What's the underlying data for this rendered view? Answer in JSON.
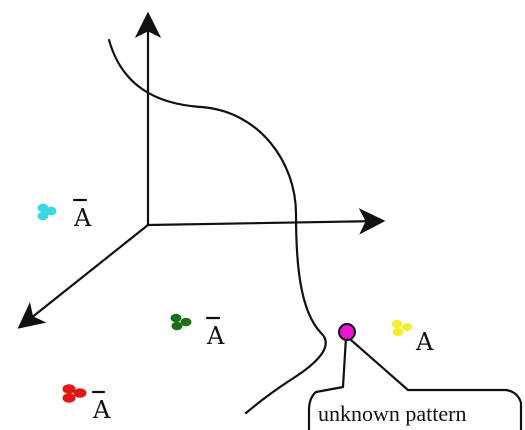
{
  "diagram": {
    "labels": {
      "cyan_class": "A",
      "green_class": "A",
      "red_class": "A",
      "yellow_class": "A",
      "unknown_pattern": "unknown pattern"
    },
    "colors": {
      "cyan": "#39d7e6",
      "green": "#1d6f18",
      "red": "#e01818",
      "yellow": "#f2ef2d",
      "unknown": "#ea13d2",
      "line": "#111111"
    },
    "class_bars": {
      "cyan_class": true,
      "green_class": true,
      "red_class": true,
      "yellow_class": false
    }
  }
}
